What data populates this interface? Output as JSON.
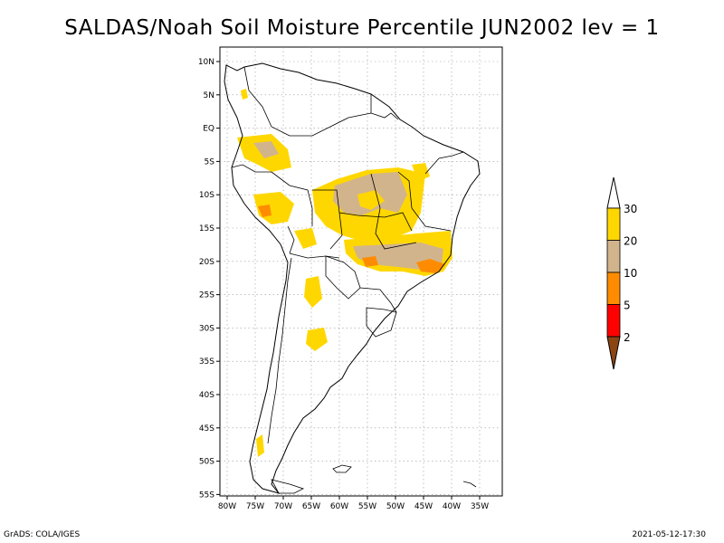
{
  "title": "SALDAS/Noah Soil Moisture Percentile JUN2002 lev = 1",
  "footer": {
    "left": "GrADS: COLA/IGES",
    "right": "2021-05-12-17:30"
  },
  "map": {
    "lat_ticks": [
      "10N",
      "5N",
      "EQ",
      "5S",
      "10S",
      "15S",
      "20S",
      "25S",
      "30S",
      "35S",
      "40S",
      "45S",
      "50S",
      "55S"
    ],
    "lon_ticks": [
      "80W",
      "75W",
      "70W",
      "65W",
      "60W",
      "55W",
      "50W",
      "45W",
      "40W",
      "35W"
    ],
    "lat_range": [
      10,
      -55
    ],
    "lon_range": [
      -80,
      -33
    ],
    "gridlines": "dotted"
  },
  "colorbar": {
    "bins": [
      {
        "color": "#ffd700",
        "label": "30"
      },
      {
        "color": "#d2b48c",
        "label": "20"
      },
      {
        "color": "#ff8c00",
        "label": "10"
      },
      {
        "color": "#ff0000",
        "label": "5"
      },
      {
        "color": "#8b4513",
        "label": "2"
      }
    ],
    "top_arrow_color": "#ffffff"
  }
}
